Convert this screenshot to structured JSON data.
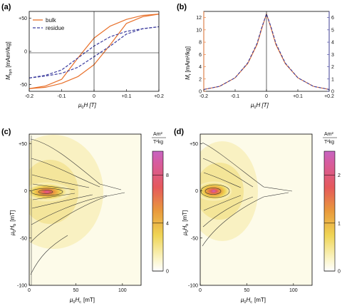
{
  "chart_data": [
    {
      "panel": "(a)",
      "type": "line",
      "xlabel_main": "μ",
      "xlabel_sub": "0",
      "xlabel_tail": "H [T]",
      "ylabel_main": "M",
      "ylabel_sub": "hys",
      "ylabel_tail": "[mAm²/kg]",
      "xlim": [
        -0.2,
        0.2
      ],
      "ylim": [
        -60,
        60
      ],
      "xticks": [
        "-0.2",
        "-0.1",
        "0",
        "+0.1",
        "+0.2"
      ],
      "yticks": [
        "-50",
        "0",
        "+50"
      ],
      "legend_position": "top-left",
      "series": [
        {
          "name": "bulk",
          "color": "#e8702a",
          "style": "solid",
          "x": [
            -0.2,
            -0.15,
            -0.1,
            -0.05,
            0,
            0.05,
            0.1,
            0.15,
            0.2
          ],
          "upper": [
            -56,
            -52,
            -42,
            -10,
            20,
            38,
            48,
            54,
            56
          ],
          "lower": [
            -56,
            -54,
            -48,
            -38,
            -20,
            10,
            42,
            52,
            56
          ]
        },
        {
          "name": "residue",
          "color": "#3d3d9e",
          "style": "dashed",
          "x": [
            -0.2,
            -0.15,
            -0.1,
            -0.05,
            0,
            0.05,
            0.1,
            0.15,
            0.2
          ],
          "upper": [
            -40,
            -36,
            -28,
            -10,
            8,
            22,
            30,
            34,
            37
          ],
          "lower": [
            -40,
            -37,
            -33,
            -24,
            -8,
            8,
            26,
            34,
            37
          ]
        }
      ]
    },
    {
      "panel": "(b)",
      "type": "line",
      "xlabel_main": "μ",
      "xlabel_sub": "0",
      "xlabel_tail": "H [T]",
      "ylabel_main": "M",
      "ylabel_sub": "r",
      "ylabel_tail": "[mAm²/kg]",
      "xlim": [
        -0.2,
        0.2
      ],
      "ylim": [
        0,
        13
      ],
      "ylim_right": [
        0,
        6.5
      ],
      "xticks": [
        "-0.2",
        "-0.1",
        "0",
        "+0.1",
        "+0.2"
      ],
      "yticks_left": [
        "0",
        "2",
        "4",
        "6",
        "8",
        "10",
        "12"
      ],
      "yticks_right": [
        "0",
        "1",
        "2",
        "3",
        "4",
        "5",
        "6"
      ],
      "left_axis_color": "#e8702a",
      "right_axis_color": "#3d3d9e",
      "series": [
        {
          "name": "bulk",
          "color": "#e8702a",
          "x": [
            -0.2,
            -0.15,
            -0.1,
            -0.06,
            -0.03,
            -0.015,
            0,
            0.015,
            0.03,
            0.06,
            0.1,
            0.15,
            0.2
          ],
          "y": [
            0.3,
            0.8,
            2.2,
            4.5,
            7.6,
            10.2,
            12.6,
            10.2,
            7.6,
            4.5,
            2.2,
            0.8,
            0.3
          ]
        },
        {
          "name": "residue",
          "color": "#3d3d9e",
          "x": [
            -0.2,
            -0.15,
            -0.1,
            -0.06,
            -0.03,
            -0.015,
            0,
            0.015,
            0.03,
            0.06,
            0.1,
            0.15,
            0.2
          ],
          "y": [
            0.15,
            0.4,
            1.1,
            2.3,
            3.9,
            5.2,
            6.3,
            5.2,
            3.9,
            2.3,
            1.1,
            0.4,
            0.15
          ]
        }
      ]
    },
    {
      "panel": "(c)",
      "type": "heatmap",
      "xlabel_main": "μ",
      "xlabel_sub": "0",
      "xlabel_tail": "H",
      "xlabel_tail_sub": "c",
      "xlabel_unit": "[mT]",
      "ylabel_main": "μ",
      "ylabel_sub": "0",
      "ylabel_tail": "H",
      "ylabel_tail_sub": "b",
      "ylabel_unit": "[mT]",
      "xlim": [
        0,
        120
      ],
      "ylim": [
        -100,
        60
      ],
      "xticks": [
        "0",
        "50",
        "100"
      ],
      "yticks": [
        "-100",
        "-50",
        "0",
        "+50"
      ],
      "colorbar_unit_top": "Am²",
      "colorbar_unit_bottom": "T²kg",
      "colorbar_range": [
        0,
        10
      ],
      "colorbar_ticks": [
        "0",
        "4",
        "8"
      ],
      "peak": {
        "hc": 18,
        "hb": -1
      }
    },
    {
      "panel": "(d)",
      "type": "heatmap",
      "xlabel_main": "μ",
      "xlabel_sub": "0",
      "xlabel_tail": "H",
      "xlabel_tail_sub": "c",
      "xlabel_unit": "[mT]",
      "ylabel_main": "μ",
      "ylabel_sub": "0",
      "ylabel_tail": "H",
      "ylabel_tail_sub": "b",
      "ylabel_unit": "[mT]",
      "xlim": [
        0,
        120
      ],
      "ylim": [
        -100,
        60
      ],
      "xticks": [
        "0",
        "50",
        "100"
      ],
      "yticks": [
        "-100",
        "-50",
        "0",
        "+50"
      ],
      "colorbar_unit_top": "Am²",
      "colorbar_unit_bottom": "T²kg",
      "colorbar_range": [
        0,
        2.5
      ],
      "colorbar_ticks": [
        "0",
        "1",
        "2"
      ],
      "peak": {
        "hc": 12,
        "hb": 0
      }
    }
  ]
}
